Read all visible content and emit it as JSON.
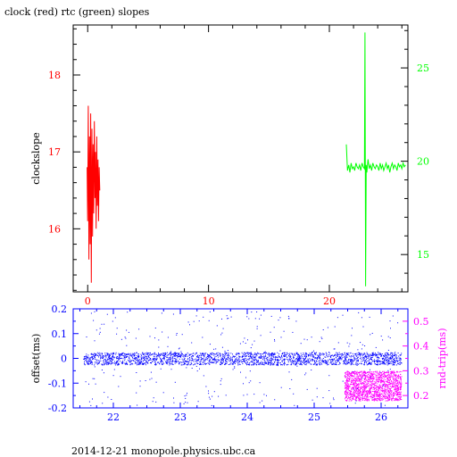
{
  "chart_data": [
    {
      "type": "line",
      "title": "clock (red) rtc (green) slopes",
      "xlabel": "",
      "xlim": [
        -1.2,
        26.5
      ],
      "xticks": [
        0,
        10,
        20
      ],
      "grid": false,
      "y_left": {
        "label": "clockslope",
        "color": "#ff0000",
        "lim": [
          15.18,
          18.65
        ],
        "ticks": [
          16,
          17,
          18
        ]
      },
      "y_right": {
        "label": "",
        "color": "#00ff00",
        "lim": [
          13.0,
          27.3
        ],
        "ticks": [
          15,
          20,
          25
        ]
      },
      "series": [
        {
          "axis": "left",
          "color": "#ff0000",
          "x": [
            -0.05,
            0.0,
            0.05,
            0.1,
            0.15,
            0.2,
            0.25,
            0.3,
            0.35,
            0.4,
            0.45,
            0.5,
            0.55,
            0.6,
            0.65,
            0.7,
            0.75,
            0.8,
            0.85,
            0.9,
            0.95,
            1.0
          ],
          "y": [
            16.8,
            16.1,
            17.6,
            15.6,
            17.2,
            15.8,
            17.5,
            15.3,
            17.3,
            15.9,
            17.1,
            16.2,
            17.4,
            16.4,
            17.0,
            16.0,
            17.2,
            16.3,
            16.9,
            16.1,
            16.8,
            16.5
          ]
        },
        {
          "axis": "right",
          "color": "#00ff00",
          "x": [
            21.4,
            21.5,
            21.6,
            21.7,
            21.8,
            21.9,
            22.0,
            22.1,
            22.2,
            22.3,
            22.4,
            22.5,
            22.6,
            22.7,
            22.8,
            22.9,
            22.95,
            23.0,
            23.05,
            23.1,
            23.2,
            23.3,
            23.4,
            23.5,
            23.6,
            23.7,
            23.8,
            23.9,
            24.0,
            24.1,
            24.2,
            24.3,
            24.4,
            24.5,
            24.6,
            24.7,
            24.8,
            24.9,
            25.0,
            25.1,
            25.2,
            25.3,
            25.4,
            25.5,
            25.6,
            25.7,
            25.8,
            25.9,
            26.0,
            26.1,
            26.2,
            26.3
          ],
          "y": [
            20.9,
            19.5,
            19.8,
            19.4,
            19.9,
            19.6,
            19.7,
            19.5,
            19.9,
            19.7,
            19.6,
            19.8,
            19.5,
            19.9,
            19.7,
            19.6,
            26.9,
            13.3,
            19.8,
            19.4,
            20.1,
            19.6,
            19.8,
            19.5,
            19.9,
            19.7,
            19.6,
            19.8,
            19.7,
            19.5,
            19.9,
            19.6,
            19.8,
            19.5,
            19.7,
            19.9,
            19.6,
            19.8,
            19.4,
            19.7,
            19.9,
            19.6,
            19.8,
            19.7,
            19.5,
            19.9,
            19.7,
            19.8,
            19.6,
            19.9,
            19.7,
            19.8
          ]
        }
      ]
    },
    {
      "type": "scatter",
      "xlabel": "",
      "xlim": [
        21.4,
        26.4
      ],
      "xticks": [
        22,
        23,
        24,
        25,
        26
      ],
      "grid": false,
      "y_left": {
        "label": "offset(ms)",
        "color": "#0000ff",
        "lim": [
          -0.2,
          0.2
        ],
        "ticks": [
          -0.2,
          -0.1,
          0,
          0.1,
          0.2
        ]
      },
      "y_right": {
        "label": "rnd-trip(ms)",
        "color": "#ff00ff",
        "lim": [
          0.15,
          0.55
        ],
        "ticks": [
          0.2,
          0.3,
          0.4,
          0.5
        ]
      },
      "series": [
        {
          "name": "offset",
          "axis": "left",
          "color": "#0000ff",
          "x_range": [
            21.55,
            26.3
          ],
          "band": [
            -0.025,
            0.025
          ],
          "outlier_range": [
            -0.19,
            0.19
          ]
        },
        {
          "name": "rnd-trip",
          "axis": "right",
          "color": "#ff00ff",
          "x_range": [
            25.45,
            26.3
          ],
          "band": [
            0.18,
            0.3
          ]
        }
      ]
    }
  ],
  "footer": "2014-12-21 monopole.physics.ubc.ca"
}
